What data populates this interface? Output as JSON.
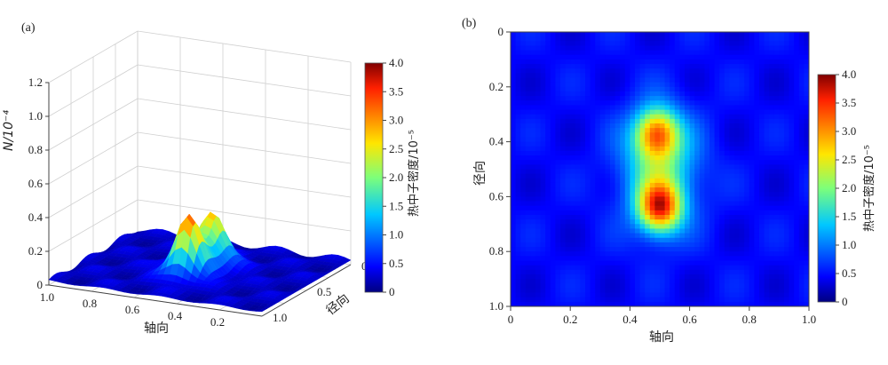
{
  "chart_data": [
    {
      "panel_label": "(a)",
      "type": "surface3d",
      "zlabel": "N/10⁻⁴",
      "xlabel": "轴向",
      "ylabel": "径向",
      "x_ticks": [
        "1.0",
        "0.8",
        "0.6",
        "0.4",
        "0.2"
      ],
      "y_ticks": [
        "0",
        "0.5",
        "1.0"
      ],
      "z_ticks": [
        "0",
        "0.2",
        "0.4",
        "0.6",
        "0.8",
        "1.0",
        "1.2"
      ],
      "zlim": [
        0,
        1.2
      ],
      "peaks": [
        {
          "axial": 0.53,
          "radial": 0.37,
          "value": 0.42
        },
        {
          "axial": 0.47,
          "radial": 0.63,
          "value": 0.44
        }
      ],
      "colorbar": {
        "label": "热中子密度/10⁻⁵",
        "ticks": [
          "0",
          "0.5",
          "1.0",
          "1.5",
          "2.0",
          "2.5",
          "3.0",
          "3.5",
          "4.0"
        ],
        "range": [
          0,
          4.0
        ]
      }
    },
    {
      "panel_label": "(b)",
      "type": "heatmap",
      "xlabel": "轴向",
      "ylabel": "径向",
      "x_ticks": [
        "0",
        "0.2",
        "0.4",
        "0.6",
        "0.8",
        "1.0"
      ],
      "y_ticks": [
        "0",
        "0.2",
        "0.4",
        "0.6",
        "0.8",
        "1.0"
      ],
      "xlim": [
        0,
        1.0
      ],
      "ylim": [
        0,
        1.0
      ],
      "peaks": [
        {
          "axial": 0.49,
          "radial": 0.37,
          "value": 3.7
        },
        {
          "axial": 0.5,
          "radial": 0.64,
          "value": 4.1
        }
      ],
      "colorbar": {
        "label": "热中子密度/10⁻⁵",
        "ticks": [
          "0",
          "0.5",
          "1.0",
          "1.5",
          "2.0",
          "2.5",
          "3.0",
          "3.5",
          "4.0"
        ],
        "range": [
          0,
          4.0
        ]
      }
    }
  ]
}
